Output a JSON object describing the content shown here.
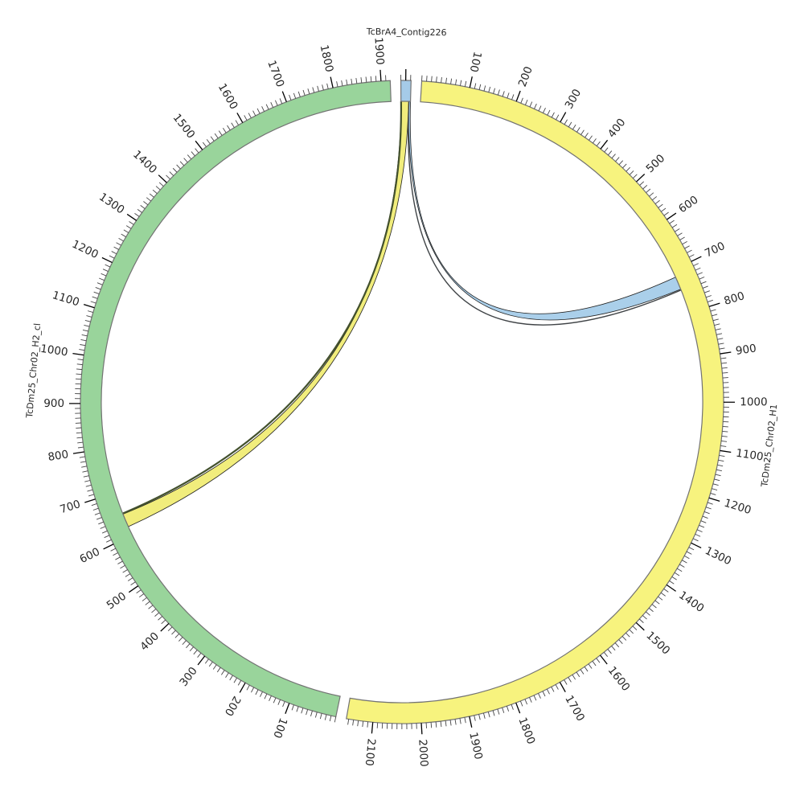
{
  "figure": {
    "background": "#ffffff"
  },
  "chart_data": {
    "type": "circos",
    "sectors": [
      {
        "name": "TcBrA4_Contig226",
        "length": 21,
        "color": "#A5CBE8",
        "major_ticks_unlabeled": [
          10
        ],
        "minor_ticks": [
          0,
          20
        ]
      },
      {
        "name": "TcDm25_Chr02_H1",
        "length": 2155,
        "color": "#F7F37E",
        "major_ticks_unlabeled": null,
        "minor_ticks": null
      },
      {
        "name": "TcDm25_Chr02_H2_cl",
        "length": 1919,
        "color": "#99D49B",
        "major_ticks_unlabeled": null,
        "minor_ticks": null
      }
    ],
    "ticks": {
      "minor_interval": 10,
      "major_interval": 100,
      "label_interval": 100,
      "first_label": 100,
      "h1_last_label": 2100,
      "h2_last_label": 1900
    },
    "ribbons": [
      {
        "source": "TcBrA4_Contig226",
        "source_range": [
          17,
          21
        ],
        "target": "TcDm25_Chr02_H1",
        "target_range": [
          716,
          745
        ],
        "color": "#AACFEA",
        "thin": false
      },
      {
        "source": "TcBrA4_Contig226",
        "source_range": [
          0,
          17
        ],
        "target": "TcDm25_Chr02_H2_cl",
        "target_range": [
          620,
          650
        ],
        "color": "#F1ED7C",
        "thin": false
      },
      {
        "source": "TcBrA4_Contig226",
        "source_range": [
          17.5,
          17.5
        ],
        "target": "TcDm25_Chr02_H1",
        "target_range": [
          747,
          747
        ],
        "color": "#3f4346",
        "thin": true
      },
      {
        "source": "TcBrA4_Contig226",
        "source_range": [
          0.3,
          0.3
        ],
        "target": "TcDm25_Chr02_H2_cl",
        "target_range": [
          651.5,
          651.5
        ],
        "color": "#43512d",
        "thin": true
      }
    ],
    "colors": {
      "band_outline": "#737373",
      "minor_tick": "#454545",
      "major_tick": "#000000",
      "tick_label": "#262626",
      "sector_label": "#262626",
      "ribbon_outline": "#1f1f1f"
    }
  }
}
